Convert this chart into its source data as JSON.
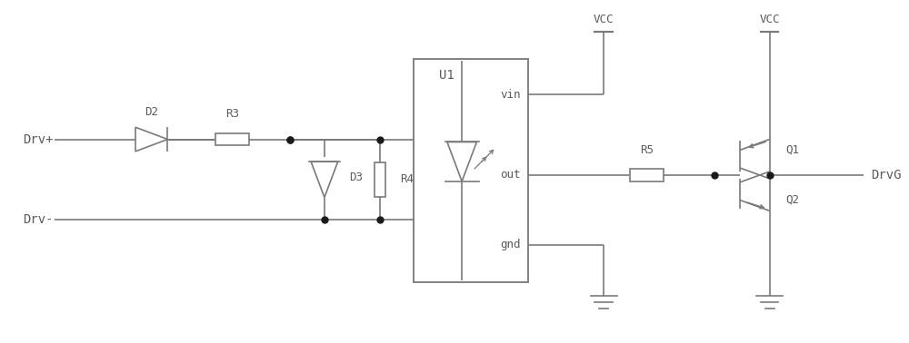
{
  "bg_color": "#ffffff",
  "line_color": "#7a7a7a",
  "text_color": "#5a5a5a",
  "line_width": 1.2,
  "dot_size": 5,
  "fig_width": 10.0,
  "fig_height": 3.78,
  "labels": {
    "drv_plus": "Drv+",
    "drv_minus": "Drv-",
    "d2": "D2",
    "r3": "R3",
    "d3": "D3",
    "r4": "R4",
    "u1": "U1",
    "vin": "vin",
    "out": "out",
    "gnd_label": "gnd",
    "r5": "R5",
    "vcc1": "VCC",
    "vcc2": "VCC",
    "q1": "Q1",
    "q2": "Q2",
    "drvg": "DrvG"
  }
}
